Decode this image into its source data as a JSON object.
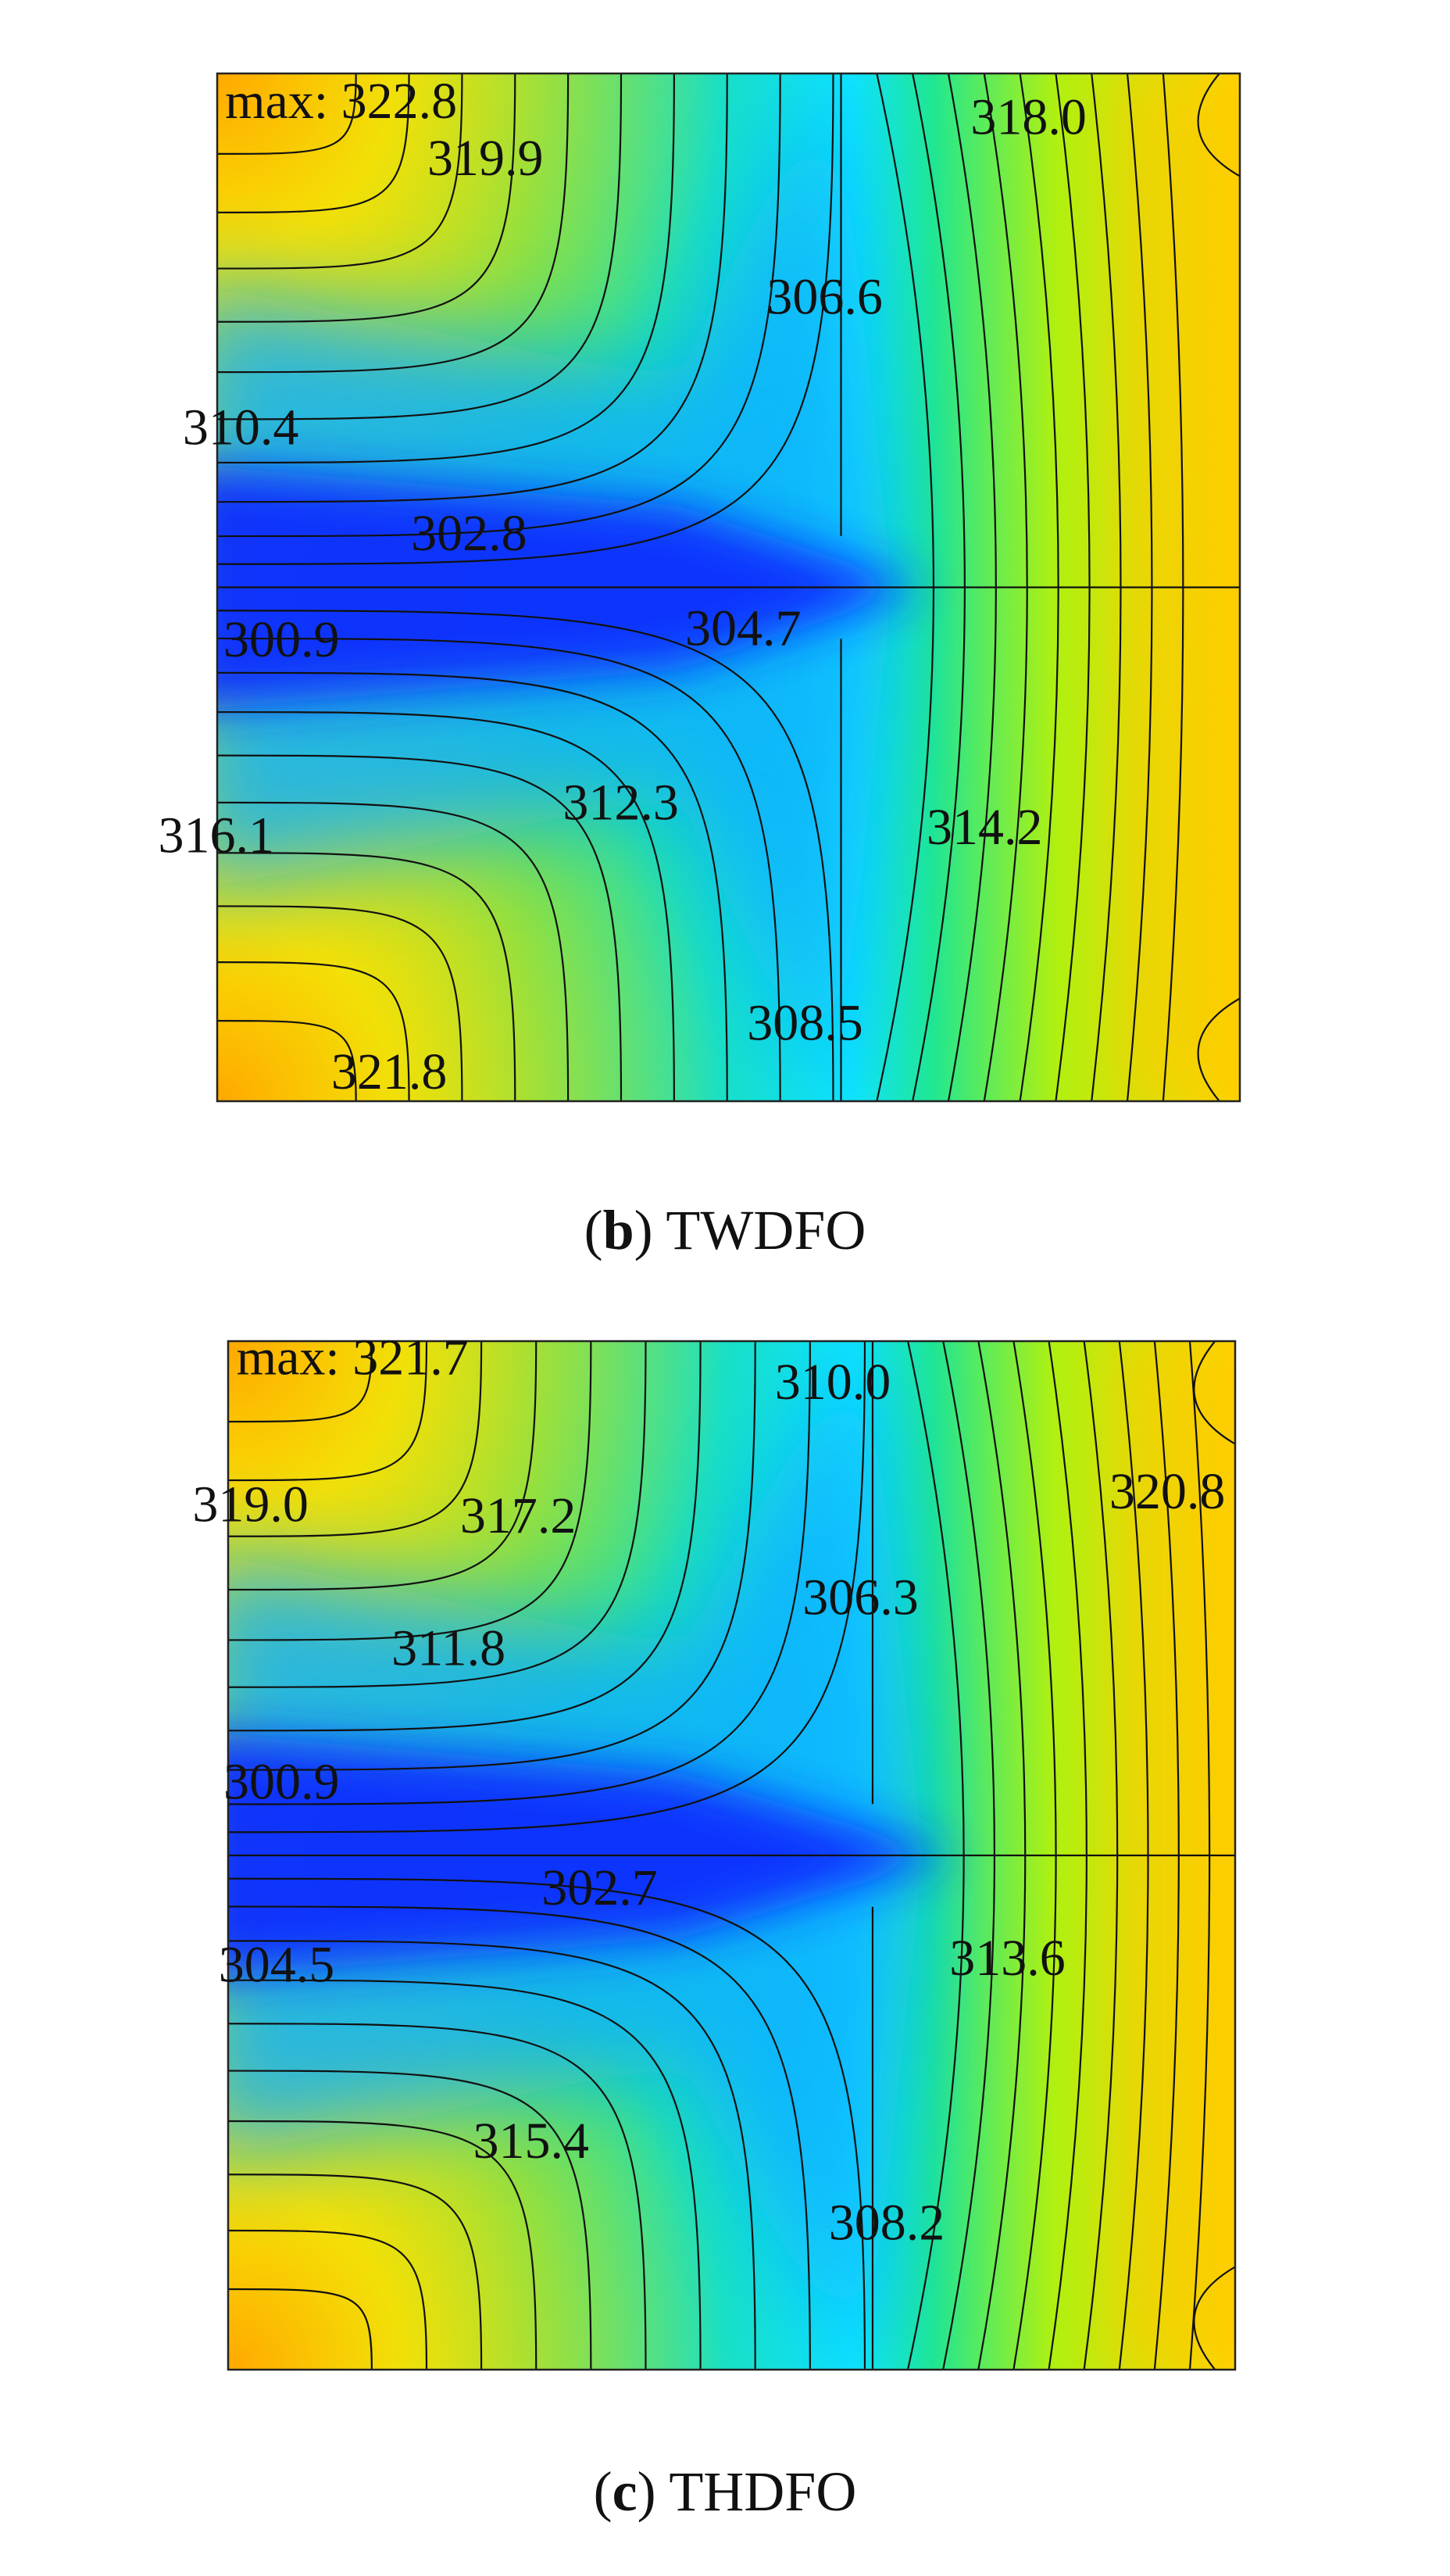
{
  "panels": [
    {
      "caption": {
        "open": "(",
        "label": "b",
        "close": ")",
        "title": "TWDFO"
      },
      "contour_labels": [
        "max: 322.8",
        "319.9",
        "318.0",
        "306.6",
        "310.4",
        "302.8",
        "300.9",
        "304.7",
        "316.1",
        "312.3",
        "314.2",
        "308.5",
        "321.8"
      ]
    },
    {
      "caption": {
        "open": "(",
        "label": "c",
        "close": ")",
        "title": "THDFO"
      },
      "contour_labels": [
        "max: 321.7",
        "310.0",
        "319.0",
        "317.2",
        "320.8",
        "306.3",
        "311.8",
        "300.9",
        "302.7",
        "304.5",
        "313.6",
        "315.4",
        "308.2"
      ]
    }
  ]
}
